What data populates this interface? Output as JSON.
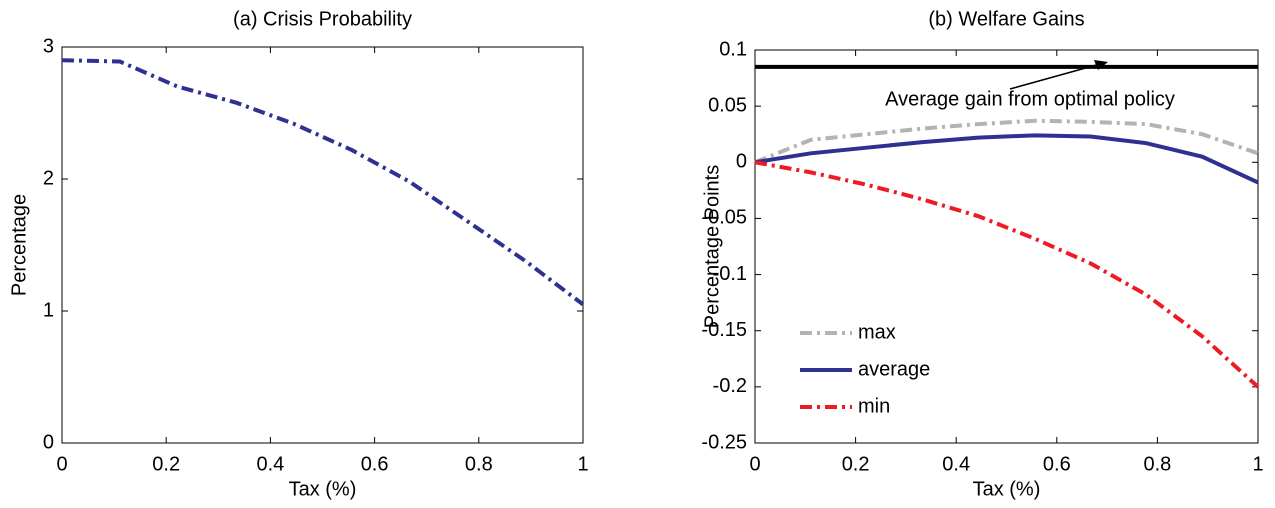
{
  "chart_data": [
    {
      "type": "line",
      "title": "(a) Crisis Probability",
      "xlabel": "Tax (%)",
      "ylabel": "Percentage",
      "x": [
        0,
        0.111,
        0.222,
        0.333,
        0.444,
        0.556,
        0.667,
        0.778,
        0.889,
        1
      ],
      "values": [
        2.9,
        2.89,
        2.7,
        2.58,
        2.42,
        2.22,
        1.98,
        1.68,
        1.38,
        1.05
      ],
      "color": "#2e3192",
      "dash": "dashdot",
      "xlim": [
        0,
        1
      ],
      "xticks": [
        0,
        0.2,
        0.4,
        0.6,
        0.8,
        1
      ],
      "ylim": [
        0,
        3
      ],
      "yticks": [
        0,
        1,
        2,
        3
      ]
    },
    {
      "type": "line",
      "title": "(b) Welfare Gains",
      "xlabel": "Tax (%)",
      "ylabel": "Percentage Points",
      "x": [
        0,
        0.111,
        0.222,
        0.333,
        0.444,
        0.556,
        0.667,
        0.778,
        0.889,
        1
      ],
      "series": [
        {
          "name": "max",
          "color": "#b3b3b3",
          "dash": "dashdot",
          "values": [
            0,
            0.02,
            0.025,
            0.03,
            0.034,
            0.037,
            0.036,
            0.034,
            0.025,
            0.008
          ]
        },
        {
          "name": "average",
          "color": "#2e3192",
          "dash": "solid",
          "values": [
            0,
            0.008,
            0.013,
            0.018,
            0.022,
            0.024,
            0.023,
            0.017,
            0.005,
            -0.018
          ]
        },
        {
          "name": "min",
          "color": "#ed1c24",
          "dash": "dashdot",
          "values": [
            0,
            -0.009,
            -0.02,
            -0.033,
            -0.048,
            -0.068,
            -0.09,
            -0.118,
            -0.155,
            -0.2
          ]
        }
      ],
      "hline": {
        "value": 0.085,
        "color": "#000000"
      },
      "annotation": "Average gain from optimal policy",
      "legend": "lower left",
      "xlim": [
        0,
        1
      ],
      "xticks": [
        0,
        0.2,
        0.4,
        0.6,
        0.8,
        1
      ],
      "ylim": [
        -0.25,
        0.1
      ],
      "yticks": [
        -0.25,
        -0.2,
        -0.15,
        -0.1,
        -0.05,
        0,
        0.05,
        0.1
      ]
    }
  ]
}
